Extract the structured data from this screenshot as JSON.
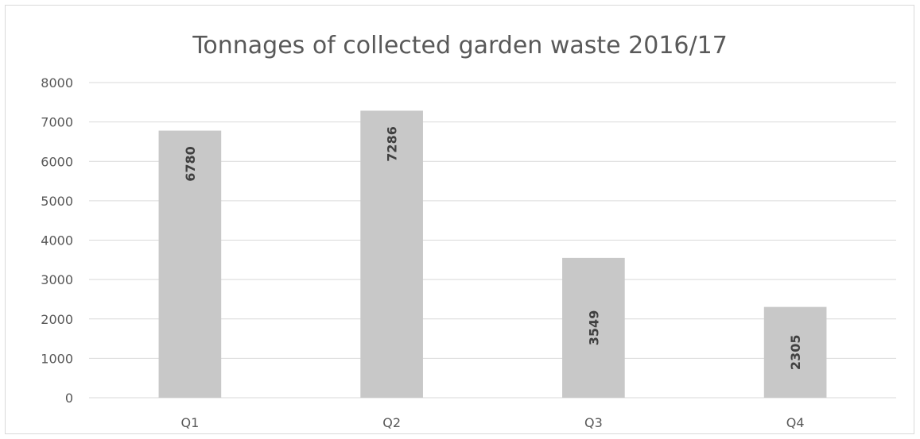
{
  "chart_data": {
    "type": "bar",
    "title": "Tonnages of collected garden waste 2016/17",
    "categories": [
      "Q1",
      "Q2",
      "Q3",
      "Q4"
    ],
    "series": [
      {
        "values": [
          6780,
          7286,
          3549,
          2305
        ]
      }
    ],
    "data_labels": [
      "6780",
      "7286",
      "3549",
      "2305"
    ],
    "y_ticks": [
      "0",
      "1000",
      "2000",
      "3000",
      "4000",
      "5000",
      "6000",
      "7000",
      "8000"
    ],
    "ylim": [
      0,
      8000
    ],
    "grid": true,
    "legend": "none",
    "colors": {
      "bar": "#c8c8c8",
      "grid": "#d9d9d9",
      "text": "#595959",
      "label": "#404040"
    }
  }
}
